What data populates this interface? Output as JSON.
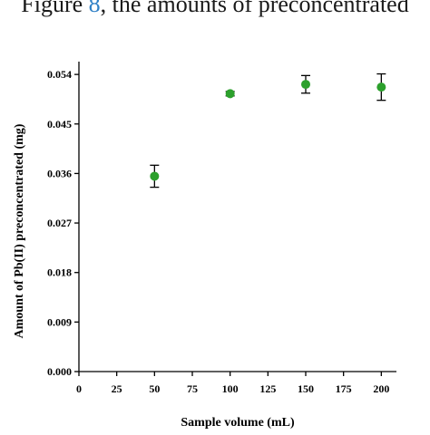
{
  "caption_fragment": {
    "prefix": "Figure ",
    "figure_ref": "8",
    "suffix": ", the amounts of preconcentrated"
  },
  "chart_data": {
    "type": "scatter",
    "title": "",
    "xlabel": "Sample volume (mL)",
    "ylabel": "Amount of Pb(II) preconcentrated (mg)",
    "xlim": [
      0,
      210
    ],
    "ylim": [
      0,
      0.056
    ],
    "x_ticks": [
      0,
      25,
      50,
      75,
      100,
      125,
      150,
      175,
      200
    ],
    "x_tick_labels": [
      "0",
      "25",
      "50",
      "75",
      "100",
      "125",
      "150",
      "175",
      "200"
    ],
    "y_ticks": [
      0,
      0.009,
      0.018,
      0.027,
      0.036,
      0.045,
      0.054
    ],
    "y_tick_labels": [
      "0.000",
      "0.009",
      "0.018",
      "0.027",
      "0.036",
      "0.045",
      "0.054"
    ],
    "grid": false,
    "series": [
      {
        "color": "#2ca02c",
        "points": [
          {
            "x": 50,
            "y": 0.0355,
            "err": 0.002
          },
          {
            "x": 100,
            "y": 0.0505,
            "err": 0.0004
          },
          {
            "x": 150,
            "y": 0.0522,
            "err": 0.0016
          },
          {
            "x": 200,
            "y": 0.0517,
            "err": 0.0024
          }
        ]
      }
    ]
  }
}
